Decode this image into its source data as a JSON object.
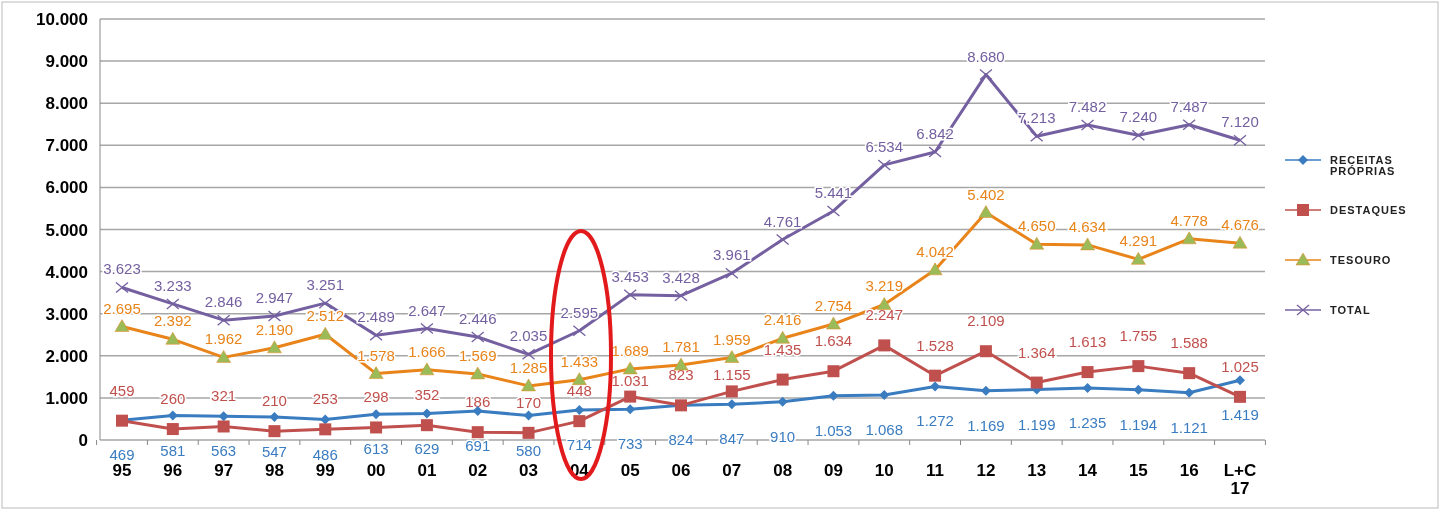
{
  "chart_data": {
    "type": "line",
    "categories": [
      "95",
      "96",
      "97",
      "98",
      "99",
      "00",
      "01",
      "02",
      "03",
      "04",
      "05",
      "06",
      "07",
      "08",
      "09",
      "10",
      "11",
      "12",
      "13",
      "14",
      "15",
      "16",
      "L+C\n17"
    ],
    "series": [
      {
        "name": "RECEITAS PRÓPRIAS",
        "color": "#3a7cc0",
        "marker": "diamond",
        "values": [
          469,
          581,
          563,
          547,
          486,
          613,
          629,
          691,
          580,
          714,
          733,
          824,
          847,
          910,
          1053,
          1068,
          1272,
          1169,
          1199,
          1235,
          1194,
          1121,
          1419
        ],
        "value_labels": [
          "469",
          "581",
          "563",
          "547",
          "486",
          "613",
          "629",
          "691",
          "580",
          "714",
          "733",
          "824",
          "847",
          "910",
          "1.053",
          "1.068",
          "1.272",
          "1.169",
          "1.199",
          "1.235",
          "1.194",
          "1.121",
          "1.419"
        ]
      },
      {
        "name": "DESTAQUES",
        "color": "#c0504d",
        "marker": "square",
        "values": [
          459,
          260,
          321,
          210,
          253,
          298,
          352,
          186,
          170,
          448,
          1031,
          823,
          1155,
          1435,
          1634,
          2247,
          1528,
          2109,
          1364,
          1613,
          1755,
          1588,
          1025
        ],
        "value_labels": [
          "459",
          "260",
          "321",
          "210",
          "253",
          "298",
          "352",
          "186",
          "170",
          "448",
          "1.031",
          "823",
          "1.155",
          "1.435",
          "1.634",
          "2.247",
          "1.528",
          "2.109",
          "1.364",
          "1.613",
          "1.755",
          "1.588",
          "1.025"
        ]
      },
      {
        "name": "TESOURO",
        "color": "#e8841a",
        "marker": "triangle",
        "values": [
          2695,
          2392,
          1962,
          2190,
          2512,
          1578,
          1666,
          1569,
          1285,
          1433,
          1689,
          1781,
          1959,
          2416,
          2754,
          3219,
          4042,
          5402,
          4650,
          4634,
          4291,
          4778,
          4676
        ],
        "value_labels": [
          "2.695",
          "2.392",
          "1.962",
          "2.190",
          "2.512",
          "1.578",
          "1.666",
          "1.569",
          "1.285",
          "1.433",
          "1.689",
          "1.781",
          "1.959",
          "2.416",
          "2.754",
          "3.219",
          "4.042",
          "5.402",
          "4.650",
          "4.634",
          "4.291",
          "4.778",
          "4.676"
        ]
      },
      {
        "name": "TOTAL",
        "color": "#7460a0",
        "marker": "cross",
        "values": [
          3623,
          3233,
          2846,
          2947,
          3251,
          2489,
          2647,
          2446,
          2035,
          2595,
          3453,
          3428,
          3961,
          4761,
          5441,
          6534,
          6842,
          8680,
          7213,
          7482,
          7240,
          7487,
          7120
        ],
        "value_labels": [
          "3.623",
          "3.233",
          "2.846",
          "2.947",
          "3.251",
          "2.489",
          "2.647",
          "2.446",
          "2.035",
          "2.595",
          "3.453",
          "3.428",
          "3.961",
          "4.761",
          "5.441",
          "6.534",
          "6.842",
          "8.680",
          "7.213",
          "7.482",
          "7.240",
          "7.487",
          "7.120"
        ]
      }
    ],
    "ylim": [
      0,
      10000
    ],
    "yticks": [
      0,
      {
        "value": 1000,
        "label": "1.000"
      },
      {
        "value": 2000,
        "label": "2.000"
      },
      {
        "value": 3000,
        "label": "3.000"
      },
      {
        "value": 4000,
        "label": "4.000"
      },
      {
        "value": 5000,
        "label": "5.000"
      },
      {
        "value": 6000,
        "label": "6.000"
      },
      {
        "value": 7000,
        "label": "7.000"
      },
      {
        "value": 8000,
        "label": "8.000"
      },
      {
        "value": 9000,
        "label": "9.000"
      },
      {
        "value": 10000,
        "label": "10.000"
      }
    ],
    "grid": "y",
    "legend": "right"
  }
}
